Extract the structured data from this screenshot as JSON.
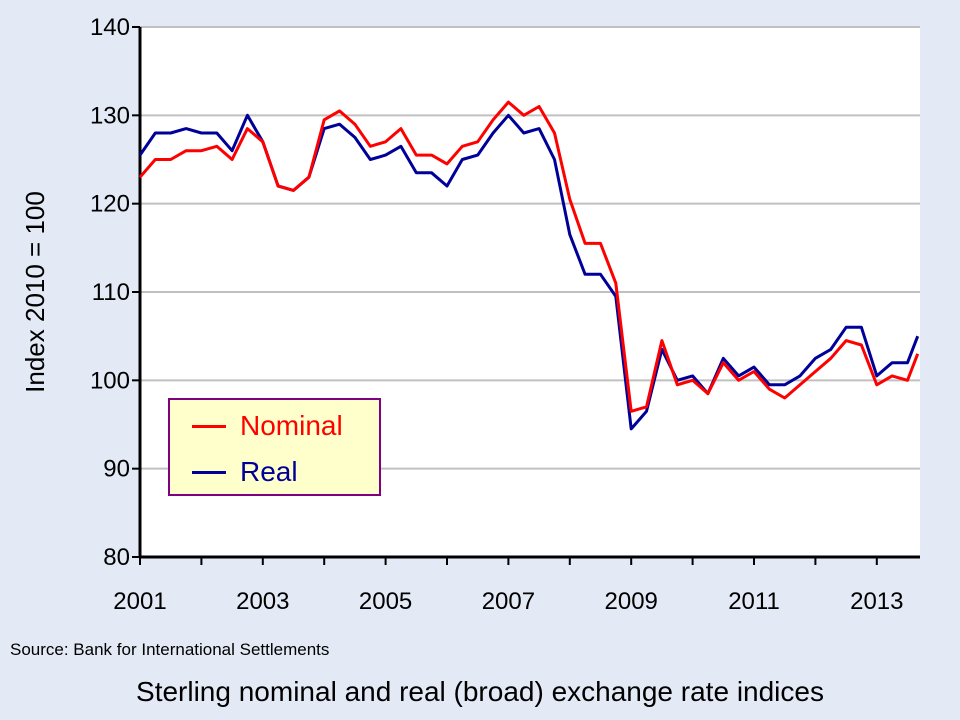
{
  "chart_data": {
    "type": "line",
    "title": "Sterling nominal and real (broad) exchange rate indices",
    "source": "Source: Bank for International Settlements",
    "xlabel": "",
    "ylabel": "Index 2010 = 100",
    "ylim": [
      80,
      140
    ],
    "yticks": [
      "80",
      "90",
      "100",
      "110",
      "120",
      "130",
      "140"
    ],
    "xlim": [
      "2001-01",
      "2013-09"
    ],
    "xticks": [
      "2001",
      "2003",
      "2005",
      "2007",
      "2009",
      "2011",
      "2013"
    ],
    "grid": "horizontal",
    "legend_placement": "bottom-left",
    "x": [
      "2001-01",
      "2001-04",
      "2001-07",
      "2001-10",
      "2002-01",
      "2002-04",
      "2002-07",
      "2002-10",
      "2003-01",
      "2003-04",
      "2003-07",
      "2003-10",
      "2004-01",
      "2004-04",
      "2004-07",
      "2004-10",
      "2005-01",
      "2005-04",
      "2005-07",
      "2005-10",
      "2006-01",
      "2006-04",
      "2006-07",
      "2006-10",
      "2007-01",
      "2007-04",
      "2007-07",
      "2007-10",
      "2008-01",
      "2008-04",
      "2008-07",
      "2008-10",
      "2009-01",
      "2009-04",
      "2009-07",
      "2009-10",
      "2010-01",
      "2010-04",
      "2010-07",
      "2010-10",
      "2011-01",
      "2011-04",
      "2011-07",
      "2011-10",
      "2012-01",
      "2012-04",
      "2012-07",
      "2012-10",
      "2013-01",
      "2013-04",
      "2013-07",
      "2013-09"
    ],
    "series": [
      {
        "name": "Nominal",
        "color": "#ff0000",
        "values": [
          123,
          125,
          125,
          126,
          126,
          126.5,
          125,
          128.5,
          127,
          122,
          121.5,
          123,
          129.5,
          130.5,
          129,
          126.5,
          127,
          128.5,
          125.5,
          125.5,
          124.5,
          126.5,
          127,
          129.5,
          131.5,
          130,
          131,
          128,
          120.5,
          115.5,
          115.5,
          111,
          96.5,
          97,
          104.5,
          99.5,
          100,
          98.5,
          102,
          100,
          101,
          99,
          98,
          99.5,
          101,
          102.5,
          104.5,
          104,
          99.5,
          100.5,
          100,
          103
        ]
      },
      {
        "name": "Real",
        "color": "#000099",
        "values": [
          125.5,
          128,
          128,
          128.5,
          128,
          128,
          126,
          130,
          127,
          122,
          121.5,
          123,
          128.5,
          129,
          127.5,
          125,
          125.5,
          126.5,
          123.5,
          123.5,
          122,
          125,
          125.5,
          128,
          130,
          128,
          128.5,
          125,
          116.5,
          112,
          112,
          109.5,
          94.5,
          96.5,
          103.5,
          100,
          100.5,
          98.5,
          102.5,
          100.5,
          101.5,
          99.5,
          99.5,
          100.5,
          102.5,
          103.5,
          106,
          106,
          100.5,
          102,
          102,
          105
        ]
      }
    ]
  }
}
